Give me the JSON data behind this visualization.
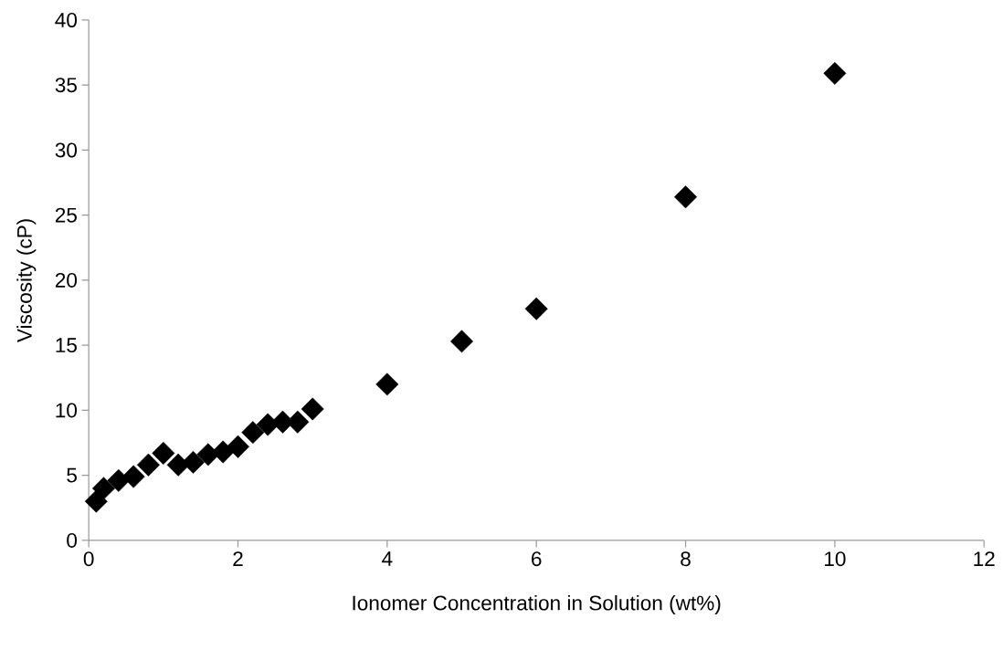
{
  "chart_data": {
    "type": "scatter",
    "xlabel": "Ionomer Concentration in Solution (wt%)",
    "ylabel": "Viscosity (cP)",
    "x": [
      0.1,
      0.2,
      0.4,
      0.6,
      0.8,
      1.0,
      1.2,
      1.4,
      1.6,
      1.8,
      2.0,
      2.2,
      2.4,
      2.6,
      2.8,
      3.0,
      4,
      5,
      6,
      8,
      10
    ],
    "values": [
      3.0,
      4.0,
      4.6,
      4.9,
      5.8,
      6.7,
      5.8,
      6.0,
      6.6,
      6.8,
      7.2,
      8.3,
      8.9,
      9.1,
      9.1,
      10.1,
      12.0,
      15.3,
      17.8,
      26.4,
      35.9
    ],
    "color": "#000000",
    "marker": "diamond",
    "grid": false,
    "xlim": [
      0,
      12
    ],
    "xticks": [
      0,
      2,
      4,
      6,
      8,
      10,
      12
    ],
    "ylim": [
      0,
      40
    ],
    "yticks": [
      0,
      5,
      10,
      15,
      20,
      25,
      30,
      35,
      40
    ]
  }
}
